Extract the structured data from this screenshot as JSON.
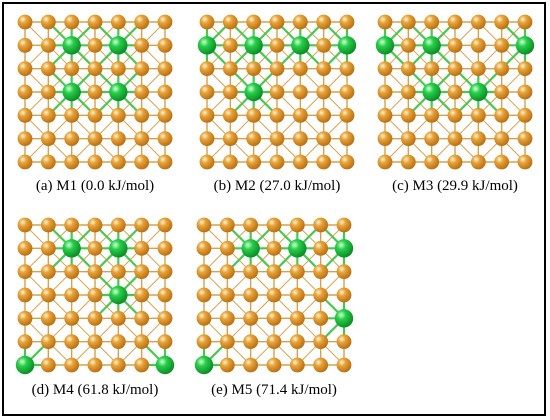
{
  "colors": {
    "host_atom": "#e9a43a",
    "host_atom_dark": "#b86f12",
    "dopant_atom": "#27d04a",
    "dopant_atom_dark": "#0d8a25",
    "bond_host": "#d9a04a",
    "bond_dopant": "#49c84f",
    "background": "#ffffff"
  },
  "panels": [
    {
      "id": "M1",
      "caption": "(a) M1 (0.0 kJ/mol)",
      "dopants": [
        [
          2,
          1
        ],
        [
          4,
          1
        ],
        [
          2,
          3
        ],
        [
          4,
          3
        ]
      ]
    },
    {
      "id": "M2",
      "caption": "(b) M2 (27.0 kJ/mol)",
      "dopants": [
        [
          0,
          1
        ],
        [
          2,
          1
        ],
        [
          4,
          1
        ],
        [
          6,
          1
        ],
        [
          2,
          3
        ]
      ]
    },
    {
      "id": "M3",
      "caption": "(c) M3 (29.9 kJ/mol)",
      "dopants": [
        [
          0,
          1
        ],
        [
          2,
          1
        ],
        [
          6,
          1
        ],
        [
          2,
          3
        ],
        [
          4,
          3
        ]
      ]
    },
    {
      "id": "M4",
      "caption": "(d) M4 (61.8 kJ/mol)",
      "dopants": [
        [
          2,
          1
        ],
        [
          4,
          1
        ],
        [
          4,
          3
        ],
        [
          0,
          6
        ],
        [
          6,
          6
        ]
      ]
    },
    {
      "id": "M5",
      "caption": "(e) M5 (71.4 kJ/mol)",
      "dopants": [
        [
          2,
          1
        ],
        [
          4,
          1
        ],
        [
          6,
          1
        ],
        [
          6,
          4
        ],
        [
          0,
          6
        ]
      ]
    }
  ]
}
